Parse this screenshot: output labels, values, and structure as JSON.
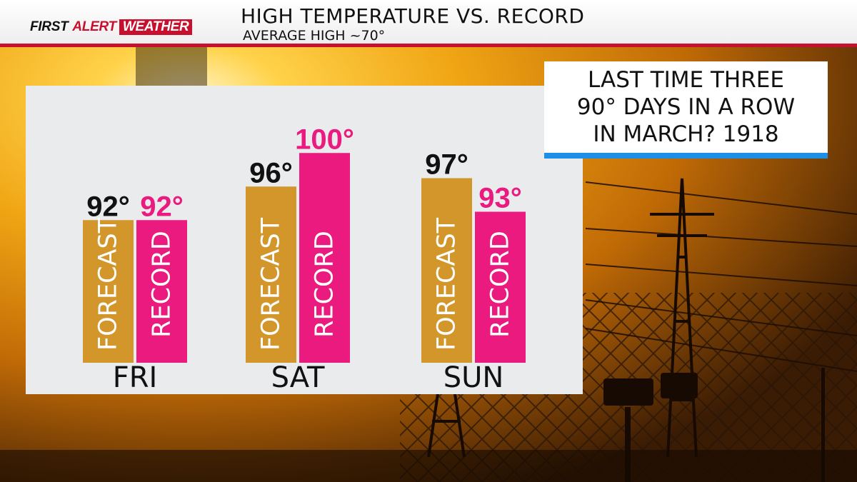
{
  "header": {
    "brand": {
      "part1": "FIRST",
      "part2": "ALERT",
      "part3": "WEATHER"
    },
    "title": "HIGH TEMPERATURE VS. RECORD",
    "subtitle": "AVERAGE HIGH ~70°"
  },
  "callout": {
    "lines": [
      "LAST TIME THREE",
      "90° DAYS IN A ROW",
      "IN MARCH? 1918"
    ]
  },
  "colors": {
    "forecast": "#d3962a",
    "record": "#ea1a7f",
    "forecast_label": "#111111",
    "record_label": "#ea1a7f",
    "accent_red": "#c8102e",
    "accent_blue": "#1e8fe6",
    "panel": "#e9ebed"
  },
  "chart_data": {
    "type": "bar",
    "categories": [
      "FRI",
      "SAT",
      "SUN"
    ],
    "series": [
      {
        "name": "FORECAST",
        "values": [
          92,
          96,
          97
        ],
        "value_labels": [
          "92°",
          "96°",
          "97°"
        ]
      },
      {
        "name": "RECORD",
        "values": [
          92,
          100,
          93
        ],
        "value_labels": [
          "92°",
          "100°",
          "93°"
        ]
      }
    ],
    "title": "HIGH TEMPERATURE VS. RECORD",
    "subtitle": "AVERAGE HIGH ~70°",
    "xlabel": "",
    "ylabel": "",
    "grid": false,
    "legend": "none"
  }
}
